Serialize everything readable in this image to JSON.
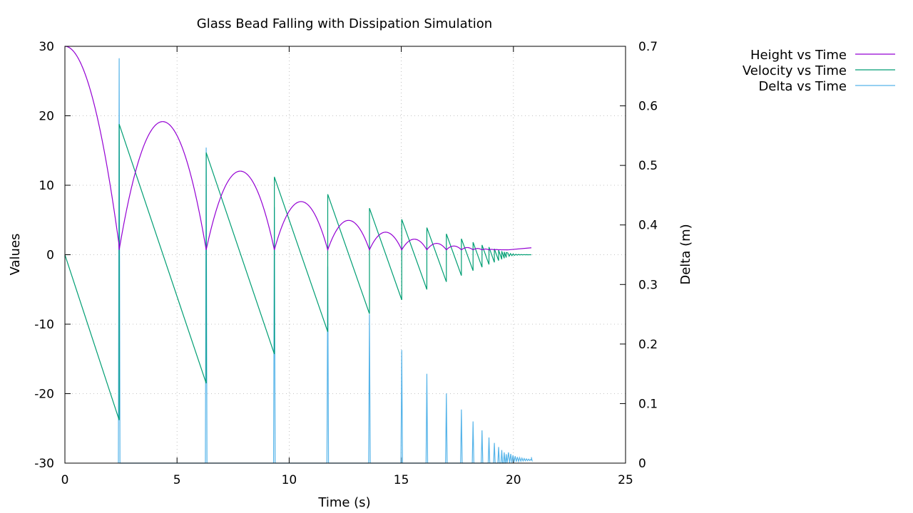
{
  "chart_data": {
    "type": "line",
    "title": "Glass Bead Falling with Dissipation Simulation",
    "xlabel": "Time (s)",
    "ylabel": "Values",
    "y2label": "Delta (m)",
    "xlim": [
      0,
      25
    ],
    "ylim": [
      -30,
      30
    ],
    "y2lim": [
      0,
      0.7
    ],
    "xticks": [
      "0",
      "5",
      "10",
      "15",
      "20",
      "25"
    ],
    "yticks": [
      "-30",
      "-20",
      "-10",
      "0",
      "10",
      "20",
      "30"
    ],
    "y2ticks": [
      "0",
      "0.1",
      "0.2",
      "0.3",
      "0.4",
      "0.5",
      "0.6",
      "0.7"
    ],
    "grid": true,
    "legend_position": "outside top-right",
    "colors": {
      "height": "#9400d3",
      "velocity": "#009e73",
      "delta": "#56b4e9"
    },
    "bounces": [
      {
        "t": 2.42,
        "v_in": -23.8,
        "v_out": 18.8,
        "delta_peak": 0.68
      },
      {
        "t": 6.3,
        "v_in": -18.5,
        "v_out": 14.7,
        "delta_peak": 0.53
      },
      {
        "t": 9.34,
        "v_in": -14.3,
        "v_out": 11.2,
        "delta_peak": 0.43
      },
      {
        "t": 11.72,
        "v_in": -11.1,
        "v_out": 8.7,
        "delta_peak": 0.33
      },
      {
        "t": 13.58,
        "v_in": -8.5,
        "v_out": 6.7,
        "delta_peak": 0.25
      },
      {
        "t": 15.02,
        "v_in": -6.5,
        "v_out": 5.1,
        "delta_peak": 0.19
      },
      {
        "t": 16.14,
        "v_in": -5.0,
        "v_out": 3.9,
        "delta_peak": 0.15
      },
      {
        "t": 17.01,
        "v_in": -3.9,
        "v_out": 3.0,
        "delta_peak": 0.117
      },
      {
        "t": 17.68,
        "v_in": -3.0,
        "v_out": 2.3,
        "delta_peak": 0.09
      },
      {
        "t": 18.2,
        "v_in": -2.3,
        "v_out": 1.8,
        "delta_peak": 0.07
      },
      {
        "t": 18.6,
        "v_in": -1.8,
        "v_out": 1.4,
        "delta_peak": 0.055
      },
      {
        "t": 18.91,
        "v_in": -1.4,
        "v_out": 1.1,
        "delta_peak": 0.043
      },
      {
        "t": 19.15,
        "v_in": -1.1,
        "v_out": 0.85,
        "delta_peak": 0.034
      },
      {
        "t": 19.34,
        "v_in": -0.85,
        "v_out": 0.66,
        "delta_peak": 0.027
      },
      {
        "t": 19.48,
        "v_in": -0.66,
        "v_out": 0.51,
        "delta_peak": 0.022
      },
      {
        "t": 19.59,
        "v_in": -0.51,
        "v_out": 0.4,
        "delta_peak": 0.018
      },
      {
        "t": 19.68,
        "v_in": -0.4,
        "v_out": 0.31,
        "delta_peak": 0.015
      }
    ],
    "series": [
      {
        "name": "Height vs Time",
        "color": "#9400d3",
        "x": [
          0,
          0.6,
          1.2,
          1.8,
          2.42,
          3.0,
          3.8,
          4.36,
          5.0,
          5.8,
          6.3,
          7.0,
          7.8,
          8.5,
          9.34,
          10.0,
          10.5,
          11.0,
          11.72,
          12.2,
          12.6,
          13.1,
          13.58,
          14.2,
          15.02,
          15.6,
          16.14,
          16.6,
          17.01,
          17.35,
          17.68,
          17.95,
          18.2,
          18.4,
          18.6,
          18.91,
          19.15,
          19.34,
          19.48,
          19.59,
          19.68,
          20.0,
          20.8
        ],
        "values": [
          30.0,
          28.24,
          22.94,
          14.12,
          0.7,
          11.3,
          17.0,
          18.5,
          17.2,
          11.5,
          0.7,
          8.5,
          11.4,
          8.3,
          0.7,
          6.6,
          7.2,
          5.9,
          0.7,
          4.1,
          4.7,
          3.5,
          0.8,
          3.2,
          0.9,
          2.3,
          0.9,
          1.8,
          0.9,
          1.6,
          0.95,
          1.4,
          0.95,
          1.3,
          0.95,
          1.0,
          0.95,
          1.0,
          0.98,
          1.0,
          1.0,
          1.0,
          1.0
        ]
      },
      {
        "name": "Velocity vs Time",
        "color": "#009e73",
        "x": [
          0,
          2.42,
          2.42,
          6.3,
          6.3,
          9.34,
          9.34,
          11.72,
          11.72,
          13.58,
          13.58,
          15.02,
          15.02,
          16.14,
          16.14,
          17.01,
          17.01,
          17.68,
          17.68,
          18.2,
          18.2,
          18.6,
          18.6,
          18.91,
          18.91,
          19.15,
          19.15,
          19.34,
          19.34,
          19.48,
          19.48,
          19.59,
          19.59,
          19.68,
          19.68,
          20.0,
          20.8
        ],
        "values": [
          0,
          -23.8,
          18.8,
          -18.5,
          14.7,
          -14.3,
          11.2,
          -11.1,
          8.7,
          -8.5,
          6.7,
          -6.5,
          5.1,
          -5.0,
          3.9,
          -3.9,
          3.0,
          -3.0,
          2.3,
          -2.3,
          1.8,
          -1.8,
          1.4,
          -1.4,
          1.1,
          -1.1,
          0.85,
          -0.85,
          0.66,
          -0.66,
          0.51,
          -0.51,
          0.4,
          -0.4,
          0.31,
          0,
          0
        ]
      },
      {
        "name": "Delta vs Time",
        "color": "#56b4e9",
        "axis": "y2",
        "x": [
          0,
          20.8
        ],
        "values": [
          0,
          0.01
        ]
      }
    ]
  }
}
